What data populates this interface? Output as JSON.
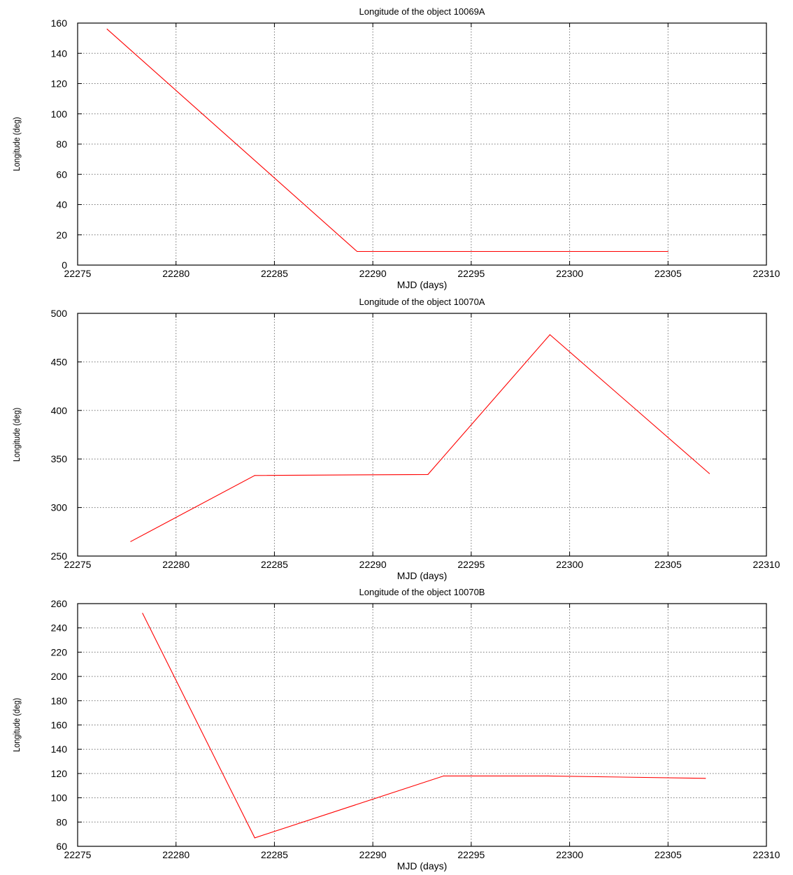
{
  "chart_data": [
    {
      "type": "line",
      "title": "Longitude of the object 10069A",
      "xlabel": "MJD (days)",
      "ylabel": "Longitude (deg)",
      "xlim": [
        22275,
        22310
      ],
      "ylim": [
        0,
        160
      ],
      "xticks": [
        22275,
        22280,
        22285,
        22290,
        22295,
        22300,
        22305,
        22310
      ],
      "yticks": [
        0,
        20,
        40,
        60,
        80,
        100,
        120,
        140,
        160
      ],
      "grid": true,
      "series": [
        {
          "color": "#ff0000",
          "x": [
            22276.5,
            22289.2,
            22305
          ],
          "y": [
            156,
            9,
            9
          ]
        }
      ]
    },
    {
      "type": "line",
      "title": "Longitude of the object 10070A",
      "xlabel": "MJD (days)",
      "ylabel": "Longitude (deg)",
      "xlim": [
        22275,
        22310
      ],
      "ylim": [
        250,
        500
      ],
      "xticks": [
        22275,
        22280,
        22285,
        22290,
        22295,
        22300,
        22305,
        22310
      ],
      "yticks": [
        250,
        300,
        350,
        400,
        450,
        500
      ],
      "grid": true,
      "series": [
        {
          "color": "#ff0000",
          "x": [
            22277.7,
            22284,
            22292.8,
            22299,
            22307.1
          ],
          "y": [
            265,
            333,
            334,
            478,
            335
          ]
        }
      ]
    },
    {
      "type": "line",
      "title": "Longitude of the object 10070B",
      "xlabel": "MJD (days)",
      "ylabel": "Longitude (deg)",
      "xlim": [
        22275,
        22310
      ],
      "ylim": [
        60,
        260
      ],
      "xticks": [
        22275,
        22280,
        22285,
        22290,
        22295,
        22300,
        22305,
        22310
      ],
      "yticks": [
        60,
        80,
        100,
        120,
        140,
        160,
        180,
        200,
        220,
        240,
        260
      ],
      "grid": true,
      "series": [
        {
          "color": "#ff0000",
          "x": [
            22278.3,
            22284,
            22293.6,
            22298.9,
            22306.9
          ],
          "y": [
            252,
            67,
            118,
            118,
            116
          ]
        }
      ]
    }
  ]
}
